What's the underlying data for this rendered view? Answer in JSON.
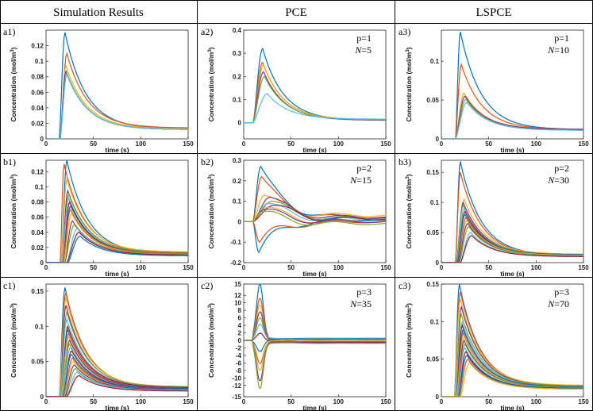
{
  "headers": [
    "Simulation Results",
    "PCE",
    "LSPCE"
  ],
  "common": {
    "xlabel": "time (s)",
    "ylabel_prefix": "Concentration (mol/m",
    "ylabel_sup": "3",
    "ylabel_suffix": ")",
    "xlim": [
      0,
      150
    ],
    "xticks": [
      0,
      50,
      100,
      150
    ]
  },
  "palette": [
    "#0072BD",
    "#D95319",
    "#EDB120",
    "#7E2F8E",
    "#77AC30",
    "#4DBEEE",
    "#A2142F"
  ],
  "panels": [
    {
      "id": "a1",
      "label": "a1)",
      "col": 0,
      "row": 0,
      "ylim": [
        0,
        0.14
      ],
      "yticks": [
        "0",
        "0.02",
        "0.04",
        "0.06",
        "0.08",
        "0.1",
        "0.12"
      ],
      "ytickvals": [
        0,
        0.02,
        0.04,
        0.06,
        0.08,
        0.1,
        0.12
      ],
      "annotation": null,
      "chart_data": {
        "type": "line",
        "kind": "decay",
        "series": [
          {
            "peak": 0.137,
            "t0": 14,
            "tp": 20,
            "tail": 0.013
          },
          {
            "peak": 0.11,
            "t0": 15,
            "tp": 22,
            "tail": 0.014
          },
          {
            "peak": 0.094,
            "t0": 15,
            "tp": 21,
            "tail": 0.013
          },
          {
            "peak": 0.087,
            "t0": 15,
            "tp": 21,
            "tail": 0.012
          },
          {
            "peak": 0.085,
            "t0": 15,
            "tp": 22,
            "tail": 0.012
          },
          {
            "peak": 0.083,
            "t0": 15,
            "tp": 22,
            "tail": 0.012
          }
        ]
      }
    },
    {
      "id": "a2",
      "label": "a2)",
      "col": 1,
      "row": 0,
      "ylim": [
        -0.07,
        0.4
      ],
      "yticks": [
        "0",
        "0.1",
        "0.2",
        "0.3",
        "0.4"
      ],
      "ytickvals": [
        0,
        0.1,
        0.2,
        0.3,
        0.4
      ],
      "annotation": {
        "p": "p=1",
        "N": "=5"
      },
      "chart_data": {
        "type": "line",
        "kind": "decay",
        "series": [
          {
            "peak": 0.32,
            "t0": 10,
            "tp": 20,
            "tail": 0.01
          },
          {
            "peak": 0.26,
            "t0": 10,
            "tp": 20,
            "tail": 0.012
          },
          {
            "peak": 0.25,
            "t0": 10,
            "tp": 21,
            "tail": 0.012
          },
          {
            "peak": 0.22,
            "t0": 10,
            "tp": 21,
            "tail": 0.01
          },
          {
            "peak": 0.2,
            "t0": 10,
            "tp": 22,
            "tail": 0.012
          },
          {
            "peak": 0.125,
            "t0": 10,
            "tp": 25,
            "tail": 0.015
          }
        ]
      }
    },
    {
      "id": "a3",
      "label": "a3)",
      "col": 2,
      "row": 0,
      "ylim": [
        0,
        0.14
      ],
      "yticks": [
        "0",
        "0.05",
        "0.1"
      ],
      "ytickvals": [
        0,
        0.05,
        0.1
      ],
      "annotation": {
        "p": "p=1",
        "N": "=10"
      },
      "chart_data": {
        "type": "line",
        "kind": "decay",
        "series": [
          {
            "peak": 0.138,
            "t0": 15,
            "tp": 20,
            "tail": 0.012
          },
          {
            "peak": 0.096,
            "t0": 15,
            "tp": 21,
            "tail": 0.012
          },
          {
            "peak": 0.059,
            "t0": 15,
            "tp": 24,
            "tail": 0.012
          },
          {
            "peak": 0.055,
            "t0": 15,
            "tp": 25,
            "tail": 0.012
          },
          {
            "peak": 0.051,
            "t0": 15,
            "tp": 26,
            "tail": 0.011
          },
          {
            "peak": 0.047,
            "t0": 15,
            "tp": 27,
            "tail": 0.011
          }
        ]
      }
    },
    {
      "id": "b1",
      "label": "b1)",
      "col": 0,
      "row": 1,
      "ylim": [
        0,
        0.135
      ],
      "yticks": [
        "0",
        "0.02",
        "0.04",
        "0.06",
        "0.08",
        "0.1",
        "0.12"
      ],
      "ytickvals": [
        0,
        0.02,
        0.04,
        0.06,
        0.08,
        0.1,
        0.12
      ],
      "annotation": null,
      "chart_data": {
        "type": "line",
        "kind": "decay",
        "series": [
          {
            "peak": 0.135,
            "t0": 16,
            "tp": 22,
            "tail": 0.012
          },
          {
            "peak": 0.13,
            "t0": 15,
            "tp": 19,
            "tail": 0.013
          },
          {
            "peak": 0.11,
            "t0": 16,
            "tp": 22,
            "tail": 0.014
          },
          {
            "peak": 0.095,
            "t0": 17,
            "tp": 23,
            "tail": 0.013
          },
          {
            "peak": 0.09,
            "t0": 17,
            "tp": 24,
            "tail": 0.013
          },
          {
            "peak": 0.085,
            "t0": 17,
            "tp": 24,
            "tail": 0.012
          },
          {
            "peak": 0.08,
            "t0": 18,
            "tp": 25,
            "tail": 0.012
          },
          {
            "peak": 0.075,
            "t0": 18,
            "tp": 26,
            "tail": 0.012
          },
          {
            "peak": 0.07,
            "t0": 18,
            "tp": 26,
            "tail": 0.012
          },
          {
            "peak": 0.065,
            "t0": 19,
            "tp": 27,
            "tail": 0.011
          },
          {
            "peak": 0.055,
            "t0": 20,
            "tp": 28,
            "tail": 0.011
          },
          {
            "peak": 0.05,
            "t0": 20,
            "tp": 30,
            "tail": 0.011
          },
          {
            "peak": 0.045,
            "t0": 22,
            "tp": 33,
            "tail": 0.01
          },
          {
            "peak": 0.04,
            "t0": 22,
            "tp": 35,
            "tail": 0.01
          },
          {
            "peak": 0.035,
            "t0": 23,
            "tp": 36,
            "tail": 0.009
          }
        ]
      }
    },
    {
      "id": "b2",
      "label": "b2)",
      "col": 1,
      "row": 1,
      "ylim": [
        -0.2,
        0.3
      ],
      "yticks": [
        "-0.2",
        "-0.1",
        "0",
        "0.1",
        "0.2",
        "0.3"
      ],
      "ytickvals": [
        -0.2,
        -0.1,
        0,
        0.1,
        0.2,
        0.3
      ],
      "annotation": {
        "p": "p=2",
        "N": "=15"
      },
      "chart_data": {
        "type": "line",
        "kind": "oscillate",
        "series": [
          {
            "peak": 0.27,
            "t0": 10,
            "tp": 18,
            "tail": 0.02
          },
          {
            "peak": 0.22,
            "t0": 10,
            "tp": 19,
            "tail": 0.02
          },
          {
            "peak": 0.13,
            "t0": 10,
            "tp": 22,
            "tail": 0.03
          },
          {
            "peak": 0.12,
            "t0": 10,
            "tp": 28,
            "tail": 0.02
          },
          {
            "peak": 0.1,
            "t0": 10,
            "tp": 30,
            "tail": 0.015
          },
          {
            "peak": 0.09,
            "t0": 10,
            "tp": 26,
            "tail": 0.01
          },
          {
            "peak": 0.08,
            "t0": 10,
            "tp": 32,
            "tail": 0.012
          },
          {
            "peak": -0.15,
            "t0": 10,
            "tp": 16,
            "tail": 0.01
          },
          {
            "peak": -0.1,
            "t0": 10,
            "tp": 17,
            "tail": 0.0
          },
          {
            "peak": 0.07,
            "t0": 10,
            "tp": 24,
            "tail": 0.0
          },
          {
            "peak": 0.06,
            "t0": 10,
            "tp": 22,
            "tail": 0.0
          },
          {
            "peak": 0.05,
            "t0": 10,
            "tp": 20,
            "tail": -0.01
          }
        ]
      }
    },
    {
      "id": "b3",
      "label": "b3)",
      "col": 2,
      "row": 1,
      "ylim": [
        0,
        0.17
      ],
      "yticks": [
        "0",
        "0.05",
        "0.1",
        "0.15"
      ],
      "ytickvals": [
        0,
        0.05,
        0.1,
        0.15
      ],
      "annotation": {
        "p": "p=2",
        "N": "=30"
      },
      "chart_data": {
        "type": "line",
        "kind": "decay",
        "series": [
          {
            "peak": 0.168,
            "t0": 15,
            "tp": 20,
            "tail": 0.012
          },
          {
            "peak": 0.15,
            "t0": 15,
            "tp": 20,
            "tail": 0.012
          },
          {
            "peak": 0.105,
            "t0": 16,
            "tp": 24,
            "tail": 0.014
          },
          {
            "peak": 0.1,
            "t0": 16,
            "tp": 23,
            "tail": 0.013
          },
          {
            "peak": 0.095,
            "t0": 16,
            "tp": 23,
            "tail": 0.013
          },
          {
            "peak": 0.09,
            "t0": 17,
            "tp": 24,
            "tail": 0.012
          },
          {
            "peak": 0.085,
            "t0": 17,
            "tp": 25,
            "tail": 0.012
          },
          {
            "peak": 0.08,
            "t0": 17,
            "tp": 25,
            "tail": 0.013
          },
          {
            "peak": 0.075,
            "t0": 18,
            "tp": 26,
            "tail": 0.012
          },
          {
            "peak": 0.07,
            "t0": 18,
            "tp": 27,
            "tail": 0.012
          },
          {
            "peak": 0.065,
            "t0": 18,
            "tp": 28,
            "tail": 0.011
          },
          {
            "peak": 0.06,
            "t0": 19,
            "tp": 29,
            "tail": 0.011
          },
          {
            "peak": 0.05,
            "t0": 20,
            "tp": 31,
            "tail": 0.01
          },
          {
            "peak": 0.045,
            "t0": 20,
            "tp": 32,
            "tail": 0.01
          }
        ]
      }
    },
    {
      "id": "c1",
      "label": "c1)",
      "col": 0,
      "row": 2,
      "ylim": [
        0,
        0.16
      ],
      "yticks": [
        "0",
        "0.05",
        "0.1",
        "0.15"
      ],
      "ytickvals": [
        0,
        0.05,
        0.1,
        0.15
      ],
      "annotation": null,
      "chart_data": {
        "type": "line",
        "kind": "decay",
        "series": [
          {
            "peak": 0.155,
            "t0": 14,
            "tp": 20,
            "tail": 0.013
          },
          {
            "peak": 0.148,
            "t0": 14,
            "tp": 21,
            "tail": 0.013
          },
          {
            "peak": 0.14,
            "t0": 14,
            "tp": 21,
            "tail": 0.014
          },
          {
            "peak": 0.13,
            "t0": 15,
            "tp": 21,
            "tail": 0.013
          },
          {
            "peak": 0.12,
            "t0": 15,
            "tp": 22,
            "tail": 0.014
          },
          {
            "peak": 0.11,
            "t0": 15,
            "tp": 22,
            "tail": 0.013
          },
          {
            "peak": 0.1,
            "t0": 16,
            "tp": 23,
            "tail": 0.013
          },
          {
            "peak": 0.095,
            "t0": 16,
            "tp": 23,
            "tail": 0.012
          },
          {
            "peak": 0.09,
            "t0": 16,
            "tp": 24,
            "tail": 0.012
          },
          {
            "peak": 0.085,
            "t0": 16,
            "tp": 24,
            "tail": 0.012
          },
          {
            "peak": 0.08,
            "t0": 17,
            "tp": 25,
            "tail": 0.012
          },
          {
            "peak": 0.075,
            "t0": 17,
            "tp": 25,
            "tail": 0.011
          },
          {
            "peak": 0.07,
            "t0": 17,
            "tp": 26,
            "tail": 0.011
          },
          {
            "peak": 0.065,
            "t0": 18,
            "tp": 27,
            "tail": 0.011
          },
          {
            "peak": 0.06,
            "t0": 18,
            "tp": 27,
            "tail": 0.011
          },
          {
            "peak": 0.055,
            "t0": 19,
            "tp": 28,
            "tail": 0.01
          },
          {
            "peak": 0.05,
            "t0": 19,
            "tp": 29,
            "tail": 0.01
          },
          {
            "peak": 0.045,
            "t0": 20,
            "tp": 30,
            "tail": 0.01
          },
          {
            "peak": 0.04,
            "t0": 21,
            "tp": 31,
            "tail": 0.009
          },
          {
            "peak": 0.035,
            "t0": 22,
            "tp": 33,
            "tail": 0.009
          },
          {
            "peak": 0.03,
            "t0": 22,
            "tp": 35,
            "tail": 0.008
          }
        ]
      }
    },
    {
      "id": "c2",
      "label": "c2)",
      "col": 1,
      "row": 2,
      "ylim": [
        -15,
        15
      ],
      "yticks": [
        "-15",
        "-12",
        "-10",
        "-8",
        "-6",
        "-4",
        "-2",
        "0",
        "2",
        "4",
        "6",
        "8",
        "10",
        "12",
        "15"
      ],
      "ytickvals": [
        -15,
        -12,
        -10,
        -8,
        -6,
        -4,
        -2,
        0,
        2,
        4,
        6,
        8,
        10,
        12,
        15
      ],
      "annotation": {
        "p": "p=3",
        "N": "=35"
      },
      "chart_data": {
        "type": "line",
        "kind": "spike",
        "series": [
          {
            "peak": 14.8,
            "t0": 10,
            "tp": 17,
            "tail": 0.3
          },
          {
            "peak": 11,
            "t0": 10,
            "tp": 17,
            "tail": 0.5
          },
          {
            "peak": 9.5,
            "t0": 10,
            "tp": 17,
            "tail": -0.4
          },
          {
            "peak": 7.5,
            "t0": 10,
            "tp": 17,
            "tail": 0.2
          },
          {
            "peak": 6,
            "t0": 10,
            "tp": 17,
            "tail": -0.2
          },
          {
            "peak": 4,
            "t0": 10,
            "tp": 17,
            "tail": 0.6
          },
          {
            "peak": 2,
            "t0": 10,
            "tp": 17,
            "tail": -0.5
          },
          {
            "peak": -3,
            "t0": 10,
            "tp": 17,
            "tail": 0.4
          },
          {
            "peak": -6,
            "t0": 10,
            "tp": 17,
            "tail": -0.3
          },
          {
            "peak": -8,
            "t0": 10,
            "tp": 17,
            "tail": 0.1
          },
          {
            "peak": -10.5,
            "t0": 10,
            "tp": 17,
            "tail": -0.6
          },
          {
            "peak": -12.5,
            "t0": 10,
            "tp": 17,
            "tail": -0.8
          }
        ]
      }
    },
    {
      "id": "c3",
      "label": "c3)",
      "col": 2,
      "row": 2,
      "ylim": [
        0,
        0.15
      ],
      "yticks": [
        "0",
        "0.05",
        "0.1",
        "0.15"
      ],
      "ytickvals": [
        0,
        0.05,
        0.1,
        0.15
      ],
      "annotation": {
        "p": "p=3",
        "N": "=70"
      },
      "chart_data": {
        "type": "line",
        "kind": "decay",
        "series": [
          {
            "peak": 0.15,
            "t0": 14,
            "tp": 19,
            "tail": 0.013
          },
          {
            "peak": 0.14,
            "t0": 14,
            "tp": 20,
            "tail": 0.014
          },
          {
            "peak": 0.13,
            "t0": 14,
            "tp": 20,
            "tail": 0.015
          },
          {
            "peak": 0.12,
            "t0": 15,
            "tp": 21,
            "tail": 0.014
          },
          {
            "peak": 0.11,
            "t0": 15,
            "tp": 21,
            "tail": 0.014
          },
          {
            "peak": 0.1,
            "t0": 15,
            "tp": 22,
            "tail": 0.013
          },
          {
            "peak": 0.095,
            "t0": 16,
            "tp": 22,
            "tail": 0.013
          },
          {
            "peak": 0.09,
            "t0": 16,
            "tp": 23,
            "tail": 0.013
          },
          {
            "peak": 0.085,
            "t0": 16,
            "tp": 23,
            "tail": 0.012
          },
          {
            "peak": 0.08,
            "t0": 16,
            "tp": 24,
            "tail": 0.012
          },
          {
            "peak": 0.075,
            "t0": 17,
            "tp": 24,
            "tail": 0.012
          },
          {
            "peak": 0.07,
            "t0": 17,
            "tp": 25,
            "tail": 0.012
          },
          {
            "peak": 0.065,
            "t0": 17,
            "tp": 25,
            "tail": 0.011
          },
          {
            "peak": 0.06,
            "t0": 18,
            "tp": 26,
            "tail": 0.011
          },
          {
            "peak": 0.055,
            "t0": 18,
            "tp": 27,
            "tail": 0.011
          },
          {
            "peak": 0.05,
            "t0": 19,
            "tp": 28,
            "tail": 0.01
          },
          {
            "peak": 0.045,
            "t0": 20,
            "tp": 30,
            "tail": 0.01
          }
        ]
      }
    }
  ]
}
